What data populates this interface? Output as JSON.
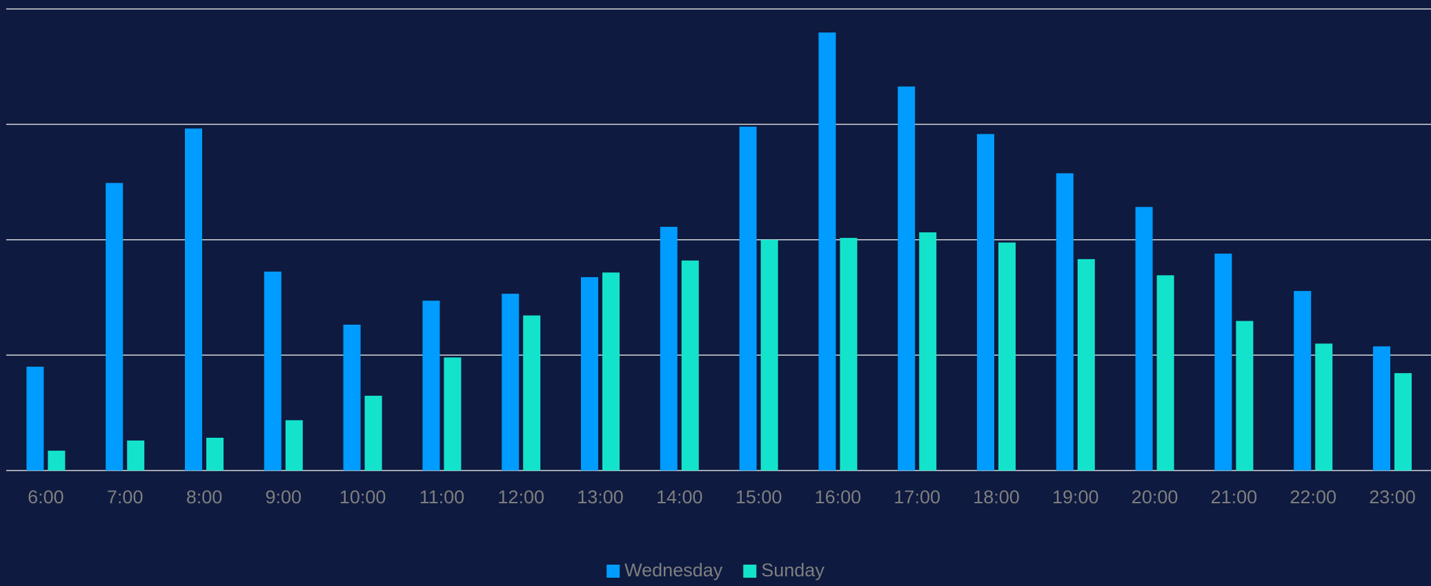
{
  "chart_data": {
    "type": "bar",
    "categories": [
      "6:00",
      "7:00",
      "8:00",
      "9:00",
      "10:00",
      "11:00",
      "12:00",
      "13:00",
      "14:00",
      "15:00",
      "16:00",
      "17:00",
      "18:00",
      "19:00",
      "20:00",
      "21:00",
      "22:00",
      "23:00"
    ],
    "series": [
      {
        "name": "Wednesday",
        "color": "#009cff",
        "values": [
          22.5,
          62.3,
          74.1,
          43.1,
          31.6,
          36.8,
          38.3,
          41.9,
          52.8,
          74.5,
          94.9,
          83.2,
          72.9,
          64.4,
          57.1,
          47.0,
          38.9,
          26.9
        ]
      },
      {
        "name": "Sunday",
        "color": "#14e3cc",
        "values": [
          4.3,
          6.5,
          7.1,
          10.9,
          16.2,
          24.5,
          33.6,
          42.9,
          45.5,
          50.0,
          50.4,
          51.6,
          49.4,
          45.8,
          42.3,
          32.4,
          27.5,
          21.1
        ]
      }
    ],
    "ylim": [
      0,
      100
    ],
    "yticks": [
      0,
      25,
      50,
      75,
      100
    ],
    "grid": true,
    "legend": "bottom"
  }
}
